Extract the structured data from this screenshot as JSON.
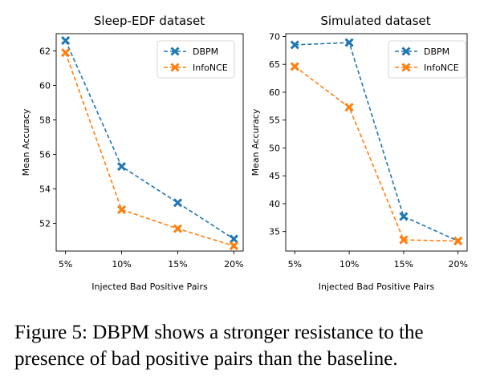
{
  "colors": {
    "dbpm": "#1f77b4",
    "infonce": "#ff7f0e"
  },
  "chart_data": [
    {
      "type": "line",
      "title": "Sleep-EDF dataset",
      "xlabel": "Injected Bad Positive Pairs",
      "ylabel": "Mean Accuracy",
      "categories": [
        "5%",
        "10%",
        "15%",
        "20%"
      ],
      "yticks": [
        52,
        54,
        56,
        58,
        60,
        62
      ],
      "ylim": [
        50.4,
        63.0
      ],
      "grid": false,
      "legend_position": "top-right",
      "series": [
        {
          "name": "DBPM",
          "values": [
            62.6,
            55.3,
            53.2,
            51.1
          ]
        },
        {
          "name": "InfoNCE",
          "values": [
            61.9,
            52.8,
            51.7,
            50.7
          ]
        }
      ]
    },
    {
      "type": "line",
      "title": "Simulated dataset",
      "xlabel": "Injected Bad Positive Pairs",
      "ylabel": "Mean Accuracy",
      "categories": [
        "5%",
        "10%",
        "15%",
        "20%"
      ],
      "yticks": [
        35,
        40,
        45,
        50,
        55,
        60,
        65,
        70
      ],
      "ylim": [
        31.5,
        70.5
      ],
      "grid": false,
      "legend_position": "top-right",
      "series": [
        {
          "name": "DBPM",
          "values": [
            68.5,
            68.9,
            37.7,
            33.3
          ]
        },
        {
          "name": "InfoNCE",
          "values": [
            64.6,
            57.3,
            33.5,
            33.3
          ]
        }
      ]
    }
  ],
  "caption": "Figure 5: DBPM shows a stronger resistance to the presence of bad positive pairs than the baseline."
}
